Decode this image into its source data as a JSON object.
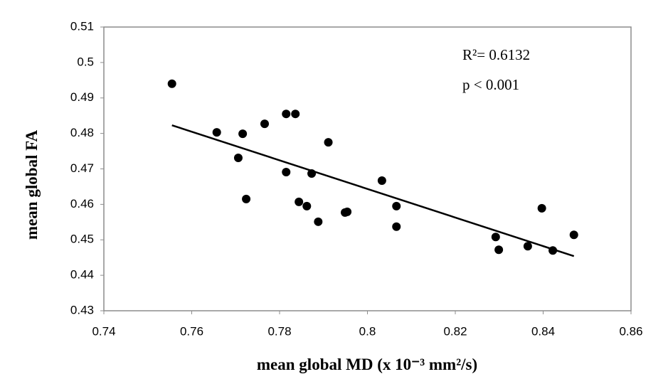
{
  "chart_data": {
    "type": "scatter",
    "x_label": "mean global MD (x 10⁻³ mm²/s)",
    "y_label": "mean global  FA",
    "annotations": [
      "R²= 0.6132",
      "p < 0.001"
    ],
    "x": [
      0.7555,
      0.7657,
      0.7716,
      0.7706,
      0.7724,
      0.7766,
      0.7815,
      0.7836,
      0.7815,
      0.7873,
      0.7844,
      0.7862,
      0.7888,
      0.7911,
      0.7954,
      0.7949,
      0.8033,
      0.8066,
      0.8066,
      0.8292,
      0.8299,
      0.8365,
      0.8397,
      0.8422,
      0.847
    ],
    "values": [
      0.494,
      0.4803,
      0.4799,
      0.4731,
      0.4615,
      0.4827,
      0.4855,
      0.4855,
      0.4691,
      0.4687,
      0.4607,
      0.4595,
      0.4551,
      0.4775,
      0.4579,
      0.4577,
      0.4667,
      0.4595,
      0.4537,
      0.4508,
      0.4472,
      0.4482,
      0.4589,
      0.447,
      0.4514
    ],
    "color": "#000000",
    "trendline": {
      "x": [
        0.7555,
        0.847
      ],
      "y": [
        0.4823,
        0.4454
      ],
      "color": "#000000"
    },
    "xlim": [
      0.74,
      0.86
    ],
    "xticks": [
      0.74,
      0.76,
      0.78,
      0.8,
      0.82,
      0.84,
      0.86
    ],
    "ylim": [
      0.43,
      0.51
    ],
    "yticks": [
      0.43,
      0.44,
      0.45,
      0.46,
      0.47,
      0.48,
      0.49,
      0.5,
      0.51
    ]
  }
}
